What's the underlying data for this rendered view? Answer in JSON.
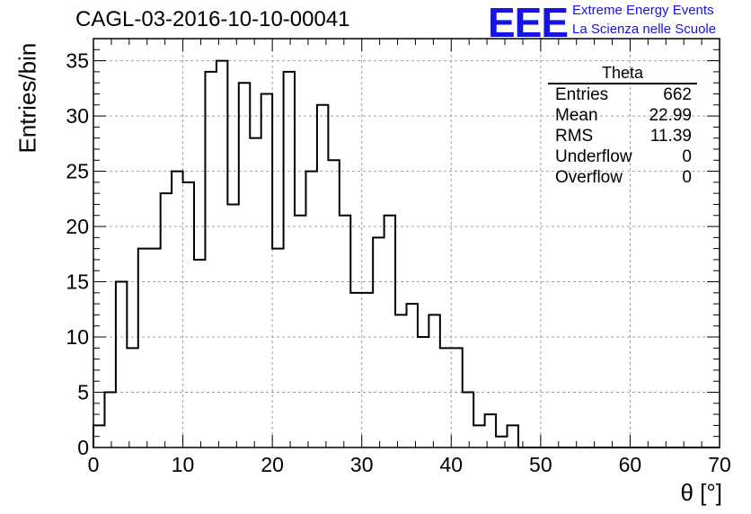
{
  "title": "CAGL-03-2016-10-10-00041",
  "logo": {
    "mark": "EEE",
    "line1": "Extreme Energy Events",
    "line2": "La Scienza nelle Scuole"
  },
  "stats": {
    "title": "Theta",
    "rows": [
      {
        "label": "Entries",
        "value": "662"
      },
      {
        "label": "Mean",
        "value": "22.99"
      },
      {
        "label": "RMS",
        "value": "11.39"
      },
      {
        "label": "Underflow",
        "value": "0"
      },
      {
        "label": "Overflow",
        "value": "0"
      }
    ]
  },
  "chart_data": {
    "type": "bar",
    "histogram": true,
    "title": "CAGL-03-2016-10-10-00041",
    "xlabel": "θ [°]",
    "ylabel": "Entries/bin",
    "xlim": [
      0,
      70
    ],
    "ylim": [
      0,
      37
    ],
    "bin_width": 1.25,
    "x_ticks": [
      0,
      10,
      20,
      30,
      40,
      50,
      60,
      70
    ],
    "y_ticks": [
      0,
      5,
      10,
      15,
      20,
      25,
      30,
      35
    ],
    "grid": true,
    "values": [
      2,
      5,
      15,
      9,
      18,
      18,
      23,
      25,
      24,
      17,
      34,
      35,
      22,
      33,
      28,
      32,
      18,
      34,
      21,
      25,
      31,
      26,
      21,
      14,
      14,
      19,
      21,
      12,
      13,
      10,
      12,
      9,
      9,
      5,
      2,
      3,
      1,
      2,
      0,
      0,
      0,
      0,
      0,
      0,
      0,
      0,
      0,
      0,
      0,
      0,
      0,
      0,
      0,
      0,
      0,
      0
    ]
  }
}
